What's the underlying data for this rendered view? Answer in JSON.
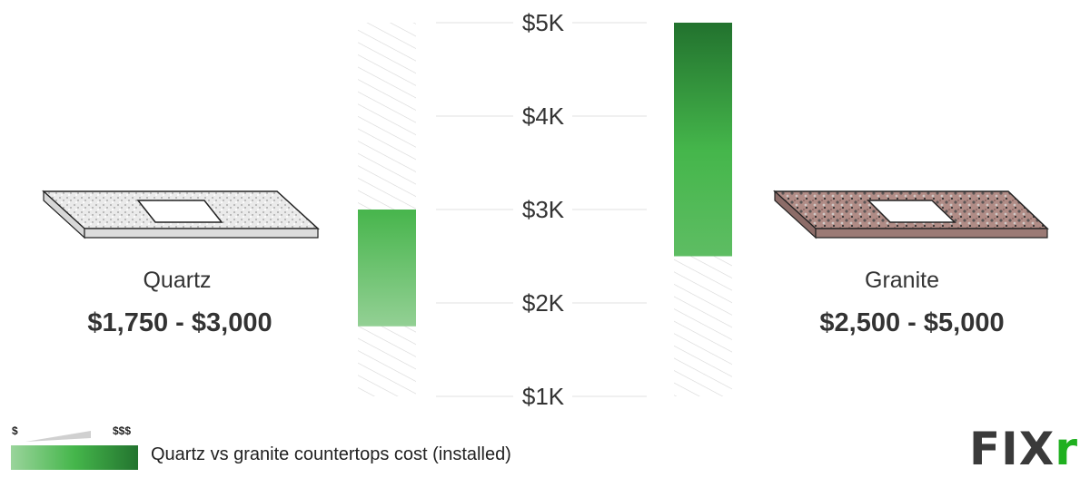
{
  "chart_data": {
    "type": "floating-bar",
    "title": "",
    "ylim": [
      1000,
      5000
    ],
    "yticks": [
      1000,
      2000,
      3000,
      4000,
      5000
    ],
    "ytick_labels": [
      "$1K",
      "$2K",
      "$3K",
      "$4K",
      "$5K"
    ],
    "grid": true,
    "categories": [
      "Quartz",
      "Granite"
    ],
    "ranges": [
      {
        "category": "Quartz",
        "low": 1750,
        "high": 3000,
        "label": "$1,750 - $3,000"
      },
      {
        "category": "Granite",
        "low": 2500,
        "high": 5000,
        "label": "$2,500 - $5,000"
      }
    ],
    "colors": {
      "dark": "#23742f",
      "mid": "#44b64b",
      "light": "#8fd090",
      "hatch": "#d8d8d8",
      "grid": "#e6e6e6"
    }
  },
  "legend": {
    "low_symbol": "$",
    "high_symbol": "$$$",
    "caption": "Quartz vs granite countertops cost (installed)"
  },
  "logo": {
    "text": "FIX",
    "accent": "r"
  }
}
